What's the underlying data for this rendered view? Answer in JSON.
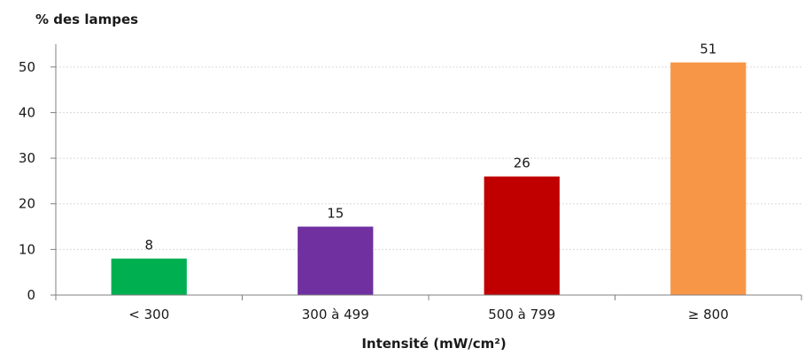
{
  "chart_data": {
    "type": "bar",
    "ylabel": "% des lampes",
    "xlabel": "Intensité (mW/cm²)",
    "categories": [
      "< 300",
      "300 à 499",
      "500 à 799",
      "≥ 800"
    ],
    "values": [
      8,
      15,
      26,
      51
    ],
    "colors": [
      "#00b050",
      "#7030a0",
      "#c00000",
      "#f79646"
    ],
    "ylim": [
      0,
      55
    ],
    "yticks": [
      0,
      10,
      20,
      30,
      40,
      50
    ],
    "grid": true,
    "legend": "none"
  }
}
